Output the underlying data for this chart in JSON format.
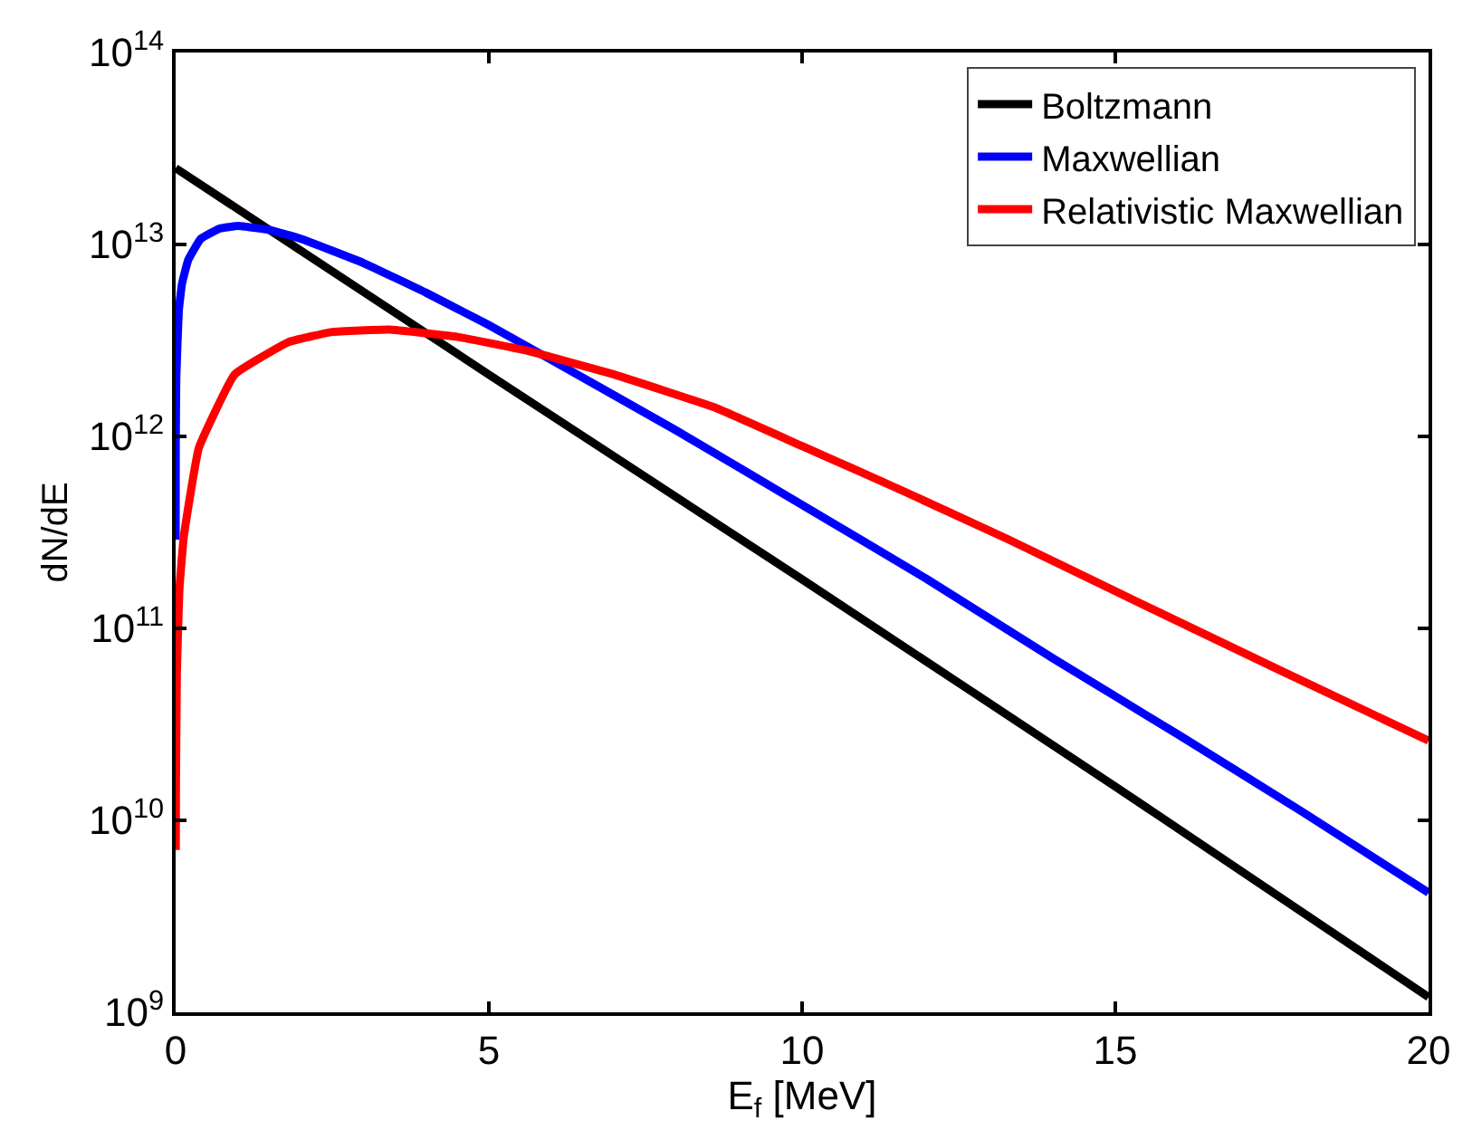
{
  "chart_data": {
    "type": "line",
    "xlabel": "E$_{f}$ [MeV]",
    "ylabel": "dN/dE",
    "log": "y",
    "legend": "top right",
    "marker": "none",
    "line_style": "solid",
    "xlim": [
      0,
      20
    ],
    "xticks": [
      0,
      5,
      10,
      15,
      20
    ],
    "ylim": [
      1000000000.0,
      100000000000000.0
    ],
    "yticks": [
      {
        "value": 1000000000.0,
        "label": "10$^{9}$"
      },
      {
        "value": 10000000000.0,
        "label": "10$^{10}$"
      },
      {
        "value": 100000000000.0,
        "label": "10$^{11}$"
      },
      {
        "value": 1000000000000.0,
        "label": "10$^{12}$"
      },
      {
        "value": 10000000000000.0,
        "label": "10$^{13}$"
      },
      {
        "value": 100000000000000.0,
        "label": "10$^{14}$"
      }
    ],
    "series": [
      {
        "name": "Boltzmann",
        "color": "#000000",
        "x": [
          0,
          5,
          10,
          15,
          20
        ],
        "values": [
          25000000000000.0,
          2100000000000.0,
          180000000000.0,
          15000000000.0,
          1200000000.0
        ]
      },
      {
        "name": "Maxwellian",
        "color": "#0000ff",
        "x": [
          0.0002,
          0.002,
          0.01,
          0.05,
          0.1,
          0.2,
          0.4,
          0.7,
          1,
          1.5,
          2,
          3,
          4,
          5,
          6,
          8,
          10,
          12,
          14,
          16,
          18,
          20
        ],
        "values": [
          290000000000.0,
          920000000000.0,
          2000000000000.0,
          4500000000000.0,
          6200000000000.0,
          8300000000000.0,
          10700000000000.0,
          12100000000000.0,
          12500000000000.0,
          11900000000000.0,
          10700000000000.0,
          8000000000000.0,
          5600000000000.0,
          3800000000000.0,
          2500000000000.0,
          1070000000000.0,
          440000000000.0,
          180000000000.0,
          70000000000.0,
          28000000000.0,
          11000000000.0,
          4200000000.0
        ]
      },
      {
        "name": "Relativistic Maxwellian",
        "color": "#ff0000",
        "x": [
          0.002,
          0.005,
          0.02,
          0.06,
          0.13,
          0.37,
          0.94,
          1.8,
          2.5,
          3.4,
          4.5,
          5.6,
          7,
          8.64,
          10,
          11.5,
          13.3,
          15.3,
          17.7,
          20
        ],
        "values": [
          7000000000.0,
          15000000000.0,
          60000000000.0,
          160000000000.0,
          300000000000.0,
          870000000000.0,
          2100000000000.0,
          3100000000000.0,
          3500000000000.0,
          3600000000000.0,
          3300000000000.0,
          2800000000000.0,
          2100000000000.0,
          1400000000000.0,
          890000000000.0,
          540000000000.0,
          290000000000.0,
          140000000000.0,
          59000000000.0,
          26000000000.0
        ]
      }
    ]
  }
}
